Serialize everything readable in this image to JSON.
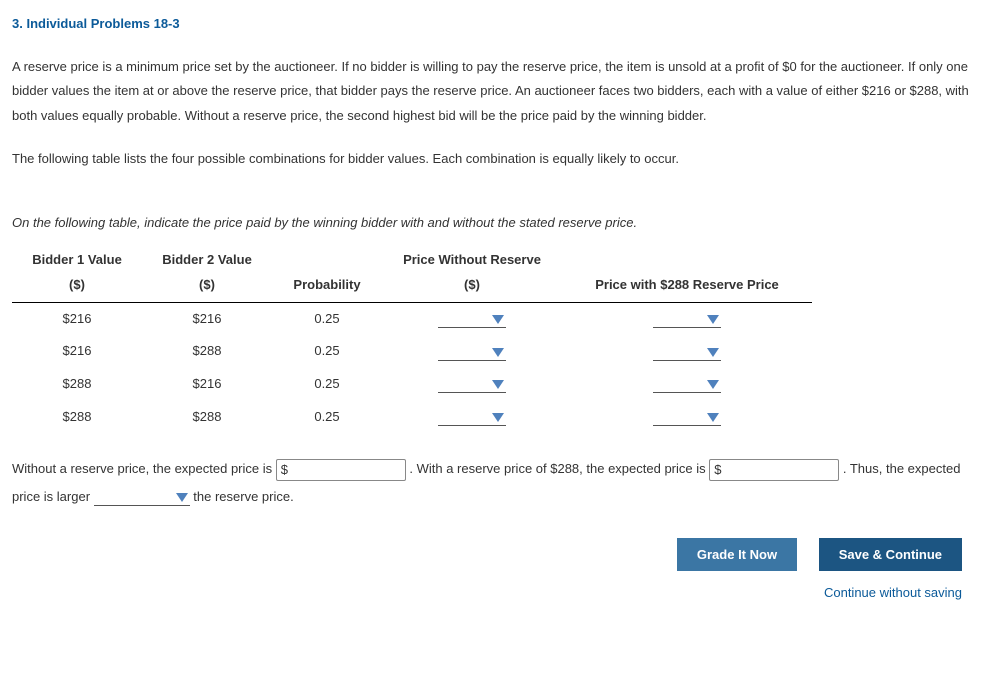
{
  "heading": "3. Individual Problems 18-3",
  "para1": "A reserve price is a minimum price set by the auctioneer. If no bidder is willing to pay the reserve price, the item is unsold at a profit of $0 for the auctioneer. If only one bidder values the item at or above the reserve price, that bidder pays the reserve price. An auctioneer faces two bidders, each with a value of either $216 or $288, with both values equally probable. Without a reserve price, the second highest bid will be the price paid by the winning bidder.",
  "para2": "The following table lists the four possible combinations for bidder values. Each combination is equally likely to occur.",
  "instruction": "On the following table, indicate the price paid by the winning bidder with and without the stated reserve price.",
  "table": {
    "headers": {
      "b1_line1": "Bidder 1 Value",
      "b1_line2": "($)",
      "b2_line1": "Bidder 2 Value",
      "b2_line2": "($)",
      "prob": "Probability",
      "pwr_line1": "Price Without Reserve",
      "pwr_line2": "($)",
      "prp": "Price with $288 Reserve Price"
    },
    "rows": [
      {
        "b1": "$216",
        "b2": "$216",
        "prob": "0.25"
      },
      {
        "b1": "$216",
        "b2": "$288",
        "prob": "0.25"
      },
      {
        "b1": "$288",
        "b2": "$216",
        "prob": "0.25"
      },
      {
        "b1": "$288",
        "b2": "$288",
        "prob": "0.25"
      }
    ]
  },
  "summary": {
    "s1": "Without a reserve price, the expected price is ",
    "s2": ". With a reserve price of $288, the expected price is ",
    "s3": ". Thus, the expected price is larger ",
    "s4": " the reserve price.",
    "prefix": "$"
  },
  "buttons": {
    "grade": "Grade It Now",
    "save": "Save & Continue",
    "continue": "Continue without saving"
  },
  "colors": {
    "accent": "#0b5a99",
    "triangle": "#4f81bd",
    "btn_grade": "#3b76a4",
    "btn_save": "#1c5582"
  }
}
